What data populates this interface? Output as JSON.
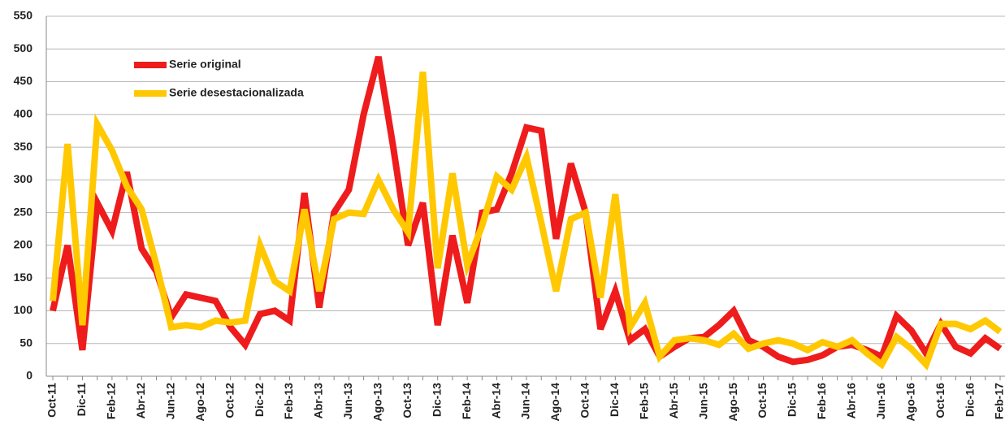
{
  "chart_data": {
    "type": "line",
    "categories": [
      "Oct-11",
      null,
      "Dic-11",
      null,
      "Feb-12",
      null,
      "Abr-12",
      null,
      "Jun-12",
      null,
      "Ago-12",
      null,
      "Oct-12",
      null,
      "Dic-12",
      null,
      "Feb-13",
      null,
      "Abr-13",
      null,
      "Jun-13",
      null,
      "Ago-13",
      null,
      "Oct-13",
      null,
      "Dic-13",
      null,
      "Feb-14",
      null,
      "Abr-14",
      null,
      "Jun-14",
      null,
      "Ago-14",
      null,
      "Oct-14",
      null,
      "Dic-14",
      null,
      "Feb-15",
      null,
      "Abr-15",
      null,
      "Jun-15",
      null,
      "Ago-15",
      null,
      "Oct-15",
      null,
      "Dic-15",
      null,
      "Feb-16",
      null,
      "Abr-16",
      null,
      "Jun-16",
      null,
      "Ago-16",
      null,
      "Oct-16",
      null,
      "Dic-16",
      null,
      "Feb-17"
    ],
    "series": [
      {
        "name": "Serie original",
        "color": "#ee1c1c",
        "values": [
          100,
          200,
          40,
          265,
          222,
          312,
          195,
          160,
          90,
          125,
          120,
          115,
          75,
          48,
          95,
          100,
          85,
          280,
          105,
          250,
          285,
          400,
          488,
          350,
          200,
          265,
          78,
          215,
          112,
          250,
          255,
          310,
          380,
          375,
          210,
          325,
          250,
          72,
          130,
          55,
          72,
          30,
          45,
          58,
          60,
          78,
          100,
          55,
          45,
          30,
          22,
          25,
          32,
          45,
          48,
          40,
          30,
          92,
          70,
          35,
          80,
          45,
          35,
          58,
          42
        ]
      },
      {
        "name": "Serie desestacionalizada",
        "color": "#ffc800",
        "values": [
          115,
          355,
          78,
          385,
          345,
          290,
          255,
          170,
          75,
          78,
          75,
          85,
          82,
          85,
          200,
          145,
          130,
          255,
          130,
          240,
          250,
          248,
          300,
          255,
          220,
          465,
          165,
          310,
          170,
          230,
          305,
          285,
          335,
          235,
          130,
          240,
          250,
          120,
          278,
          75,
          112,
          30,
          55,
          58,
          55,
          48,
          65,
          42,
          50,
          55,
          50,
          40,
          52,
          45,
          55,
          35,
          18,
          60,
          42,
          18,
          80,
          80,
          72,
          85,
          68
        ]
      }
    ],
    "ylim": [
      0,
      550
    ],
    "yticks": [
      0,
      50,
      100,
      150,
      200,
      250,
      300,
      350,
      400,
      450,
      500,
      550
    ],
    "grid": true,
    "legend": "top-left"
  }
}
